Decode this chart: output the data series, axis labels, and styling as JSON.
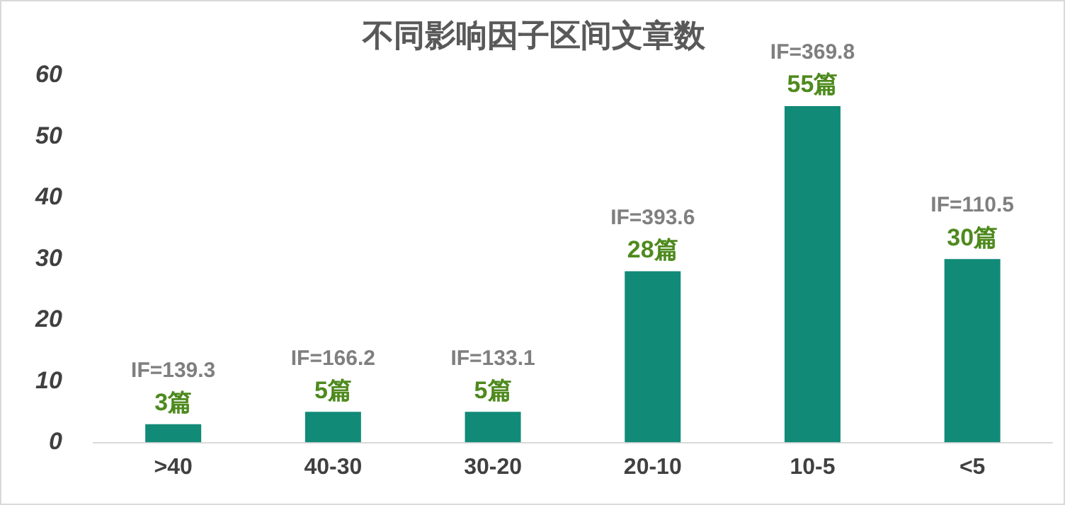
{
  "chart_data": {
    "type": "bar",
    "title": "不同影响因子区间文章数",
    "categories": [
      ">40",
      "40-30",
      "30-20",
      "20-10",
      "10-5",
      "<5"
    ],
    "values": [
      3,
      5,
      5,
      28,
      55,
      30
    ],
    "value_labels": [
      "3篇",
      "5篇",
      "5篇",
      "28篇",
      "55篇",
      "30篇"
    ],
    "color": "#128a78",
    "ylim": [
      0,
      60
    ],
    "yticks": [
      0,
      10,
      20,
      30,
      40,
      50,
      60
    ],
    "grid": false,
    "legend": false,
    "annotations": [
      {
        "text": "IF=139.3",
        "x": ">40",
        "y": 3
      },
      {
        "text": "IF=166.2",
        "x": "40-30",
        "y": 5
      },
      {
        "text": "IF=133.1",
        "x": "30-20",
        "y": 5
      },
      {
        "text": "IF=393.6",
        "x": "20-10",
        "y": 28
      },
      {
        "text": "IF=369.8",
        "x": "10-5",
        "y": 55
      },
      {
        "text": "IF=110.5",
        "x": "<5",
        "y": 30
      }
    ]
  }
}
